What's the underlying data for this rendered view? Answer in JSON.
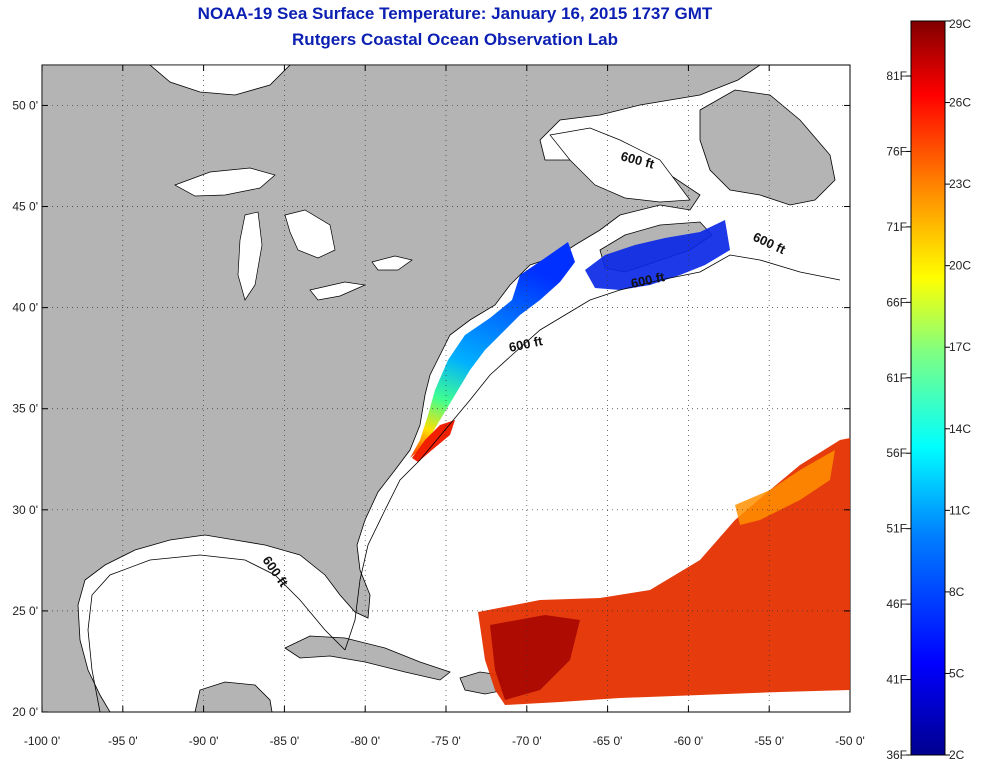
{
  "header": {
    "title": "NOAA-19 Sea Surface Temperature:  January 16, 2015 1737 GMT",
    "subtitle": "Rutgers Coastal Ocean Observation Lab"
  },
  "map": {
    "lon_range": [
      -100,
      -50
    ],
    "lat_range": [
      20,
      52
    ],
    "lon_ticks": [
      -100,
      -95,
      -90,
      -85,
      -80,
      -75,
      -70,
      -65,
      -60,
      -55,
      -50
    ],
    "lon_labels": [
      "-100 0'",
      "-95 0'",
      "-90 0'",
      "-85 0'",
      "-80 0'",
      "-75 0'",
      "-70 0'",
      "-65 0'",
      "-60 0'",
      "-55 0'",
      "-50 0'"
    ],
    "lat_ticks": [
      20,
      25,
      30,
      35,
      40,
      45,
      50
    ],
    "lat_labels": [
      "20 0'",
      "25 0'",
      "30 0'",
      "35 0'",
      "40 0'",
      "45 0'",
      "50 0'"
    ],
    "grid": "dotted",
    "land_color": "#b4b4b4",
    "ocean_color": "#ffffff",
    "contour_labels": [
      "600 ft",
      "600 ft",
      "600 ft",
      "600 ft",
      "600 ft"
    ]
  },
  "colorbar": {
    "celsius_labels": [
      "29C",
      "26C",
      "23C",
      "20C",
      "17C",
      "14C",
      "11C",
      "8C",
      "5C",
      "2C"
    ],
    "fahrenheit_labels": [
      "81F",
      "76F",
      "71F",
      "66F",
      "61F",
      "56F",
      "51F",
      "46F",
      "41F",
      "36F"
    ],
    "colormap": [
      "#00008f",
      "#0000ff",
      "#0080ff",
      "#00ffff",
      "#80ff80",
      "#ffff00",
      "#ff8000",
      "#ff0000",
      "#800000"
    ]
  }
}
